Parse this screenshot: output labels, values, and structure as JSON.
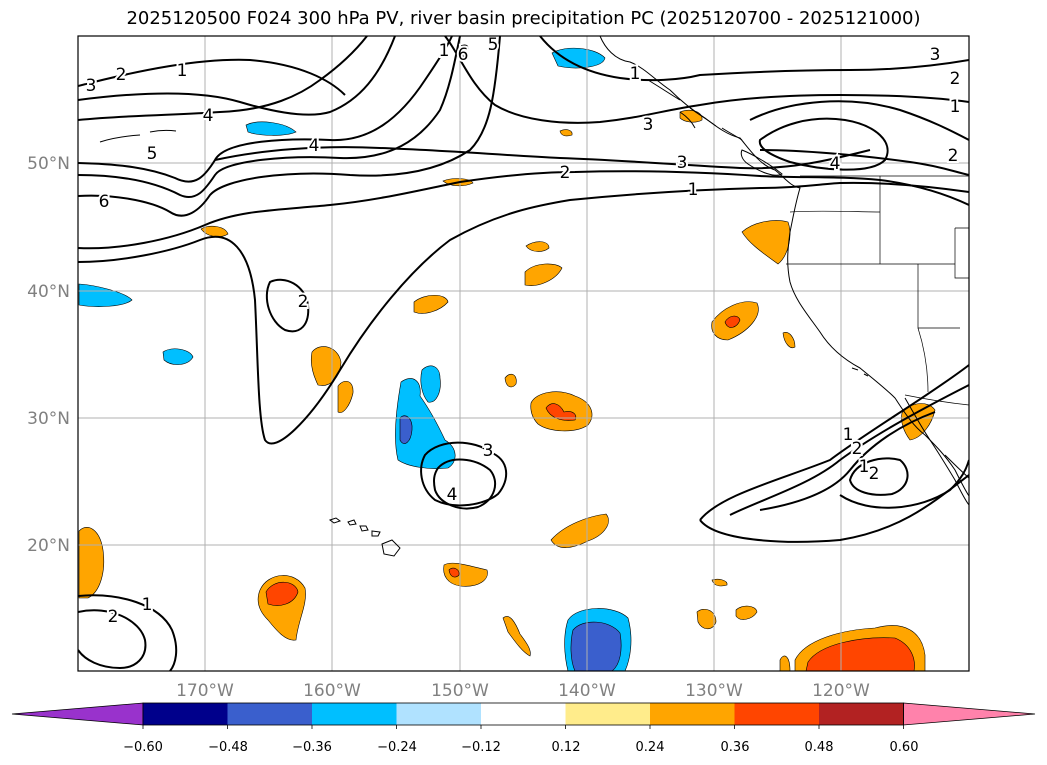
{
  "title": "2025120500 F024 300 hPa PV, river basin precipitation PC (2025120700 - 2025121000)",
  "colors": {
    "gridline": "#b0b0b0",
    "tick_label": "#808080",
    "contour": "#000000",
    "coast": "#000000"
  },
  "map": {
    "lat_labels": [
      "50°N",
      "40°N",
      "30°N",
      "20°N"
    ],
    "lon_labels": [
      "170°W",
      "160°W",
      "150°W",
      "140°W",
      "130°W",
      "120°W"
    ],
    "contour_labels": [
      "1",
      "2",
      "3",
      "4",
      "5",
      "6",
      "1",
      "2",
      "3",
      "4",
      "5",
      "6",
      "4",
      "3",
      "2",
      "1",
      "2",
      "1",
      "2",
      "3",
      "1",
      "2",
      "3",
      "4",
      "1",
      "2",
      "1",
      "2",
      "2",
      "1",
      "2",
      "1",
      "3",
      "2",
      "1"
    ]
  },
  "colorbar": {
    "levels": [
      "−0.60",
      "−0.48",
      "−0.36",
      "−0.24",
      "−0.12",
      "0.12",
      "0.24",
      "0.36",
      "0.48",
      "0.60"
    ],
    "colors": [
      "#9932cc",
      "#00008b",
      "#3a5fcd",
      "#00bfff",
      "#b0e2ff",
      "#ffffff",
      "#ffec8b",
      "#ffa500",
      "#ff4500",
      "#b22222",
      "#ff82ab"
    ]
  }
}
